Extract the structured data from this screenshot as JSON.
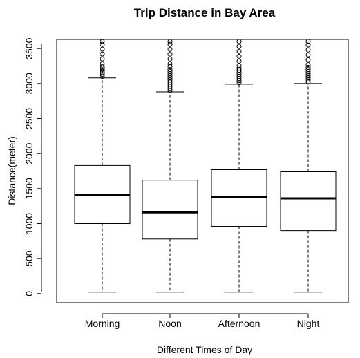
{
  "chart_data": {
    "type": "boxplot",
    "title": "Trip Distance in Bay Area",
    "xlabel": "Different Times of Day",
    "ylabel": "Distance(meter)",
    "ylim": [
      -130,
      3630
    ],
    "yticks": [
      0,
      500,
      1000,
      1500,
      2000,
      2500,
      3000,
      3500
    ],
    "ytick_labels": [
      "0",
      "500",
      "1000",
      "1500",
      "2000",
      "2500",
      "3000",
      "3500"
    ],
    "categories": [
      "Morning",
      "Noon",
      "Afternoon",
      "Night"
    ],
    "series": [
      {
        "category": "Morning",
        "whisker_low": 20,
        "q1": 1000,
        "median": 1410,
        "q3": 1830,
        "whisker_high": 3080,
        "outliers": [
          3100,
          3130,
          3155,
          3175,
          3200,
          3220,
          3240,
          3280,
          3350,
          3420,
          3490,
          3560,
          3600
        ]
      },
      {
        "category": "Noon",
        "whisker_low": 20,
        "q1": 780,
        "median": 1160,
        "q3": 1620,
        "whisker_high": 2880,
        "outliers": [
          2900,
          2930,
          2960,
          2990,
          3020,
          3050,
          3080,
          3110,
          3140,
          3170,
          3200,
          3240,
          3280,
          3350,
          3420,
          3490,
          3560,
          3600
        ]
      },
      {
        "category": "Afternoon",
        "whisker_low": 20,
        "q1": 960,
        "median": 1380,
        "q3": 1770,
        "whisker_high": 2990,
        "outliers": [
          3010,
          3040,
          3070,
          3100,
          3130,
          3160,
          3190,
          3220,
          3260,
          3320,
          3390,
          3460,
          3530,
          3600
        ]
      },
      {
        "category": "Night",
        "whisker_low": 20,
        "q1": 900,
        "median": 1360,
        "q3": 1740,
        "whisker_high": 3000,
        "outliers": [
          3020,
          3050,
          3080,
          3110,
          3140,
          3170,
          3200,
          3230,
          3270,
          3340,
          3410,
          3480,
          3550,
          3600
        ]
      }
    ],
    "grid": false
  }
}
